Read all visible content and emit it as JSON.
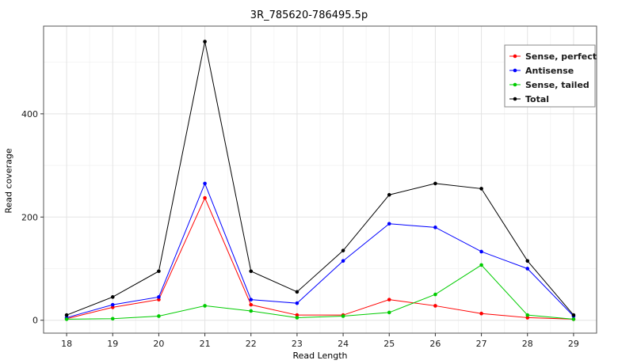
{
  "chart_data": {
    "type": "line",
    "title": "3R_785620-786495.5p",
    "xlabel": "Read Length",
    "ylabel": "Read coverage",
    "x": [
      18,
      19,
      20,
      21,
      22,
      23,
      24,
      25,
      26,
      27,
      28,
      29
    ],
    "xlim": [
      17.5,
      29.5
    ],
    "ylim": [
      -25,
      570
    ],
    "yticks": [
      0,
      200,
      400
    ],
    "grid": true,
    "legend_position": "top-right",
    "series": [
      {
        "name": "Sense, perfect",
        "color": "#ff0000",
        "values": [
          3,
          25,
          40,
          237,
          30,
          10,
          10,
          40,
          28,
          13,
          5,
          2
        ]
      },
      {
        "name": "Antisense",
        "color": "#0000ff",
        "values": [
          5,
          30,
          45,
          265,
          40,
          33,
          115,
          187,
          180,
          133,
          100,
          8
        ]
      },
      {
        "name": "Sense, tailed",
        "color": "#00cc00",
        "values": [
          2,
          3,
          8,
          28,
          18,
          5,
          8,
          15,
          50,
          107,
          10,
          2
        ]
      },
      {
        "name": "Total",
        "color": "#000000",
        "values": [
          10,
          45,
          95,
          540,
          95,
          55,
          135,
          243,
          265,
          255,
          115,
          10
        ]
      }
    ]
  }
}
